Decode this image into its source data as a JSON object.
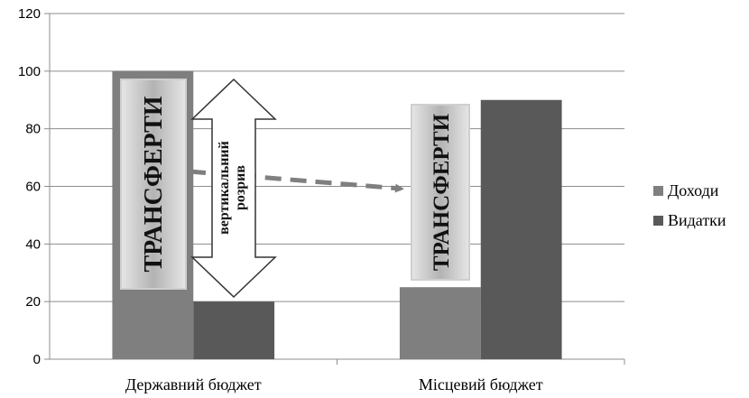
{
  "chart_data": {
    "type": "bar",
    "categories": [
      "Державний бюджет",
      "Місцевий бюджет"
    ],
    "series": [
      {
        "name": "Доходи",
        "values": [
          100,
          25
        ],
        "color": "#7f7f7f"
      },
      {
        "name": "Видатки",
        "values": [
          20,
          90
        ],
        "color": "#595959"
      }
    ],
    "ylim": [
      0,
      120
    ],
    "yticks": [
      0,
      20,
      40,
      60,
      80,
      100,
      120
    ],
    "grid": true,
    "legend": "right",
    "annotations": {
      "transfer_left": "ТРАНСФЕРТИ",
      "transfer_right": "ТРАНСФЕРТИ",
      "gap_line1": "вертикальний",
      "gap_line2": "розрив"
    }
  }
}
